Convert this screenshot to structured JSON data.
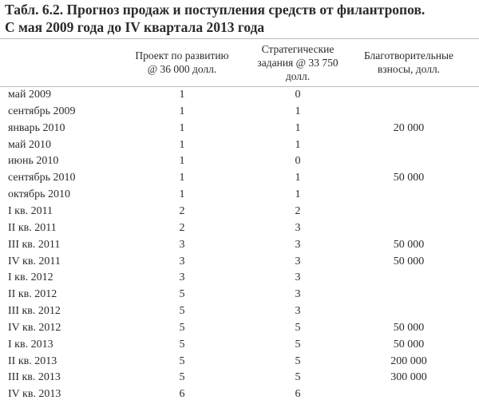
{
  "title": [
    "Табл. 6.2. Прогноз продаж и поступления средств от филантропов.",
    "С мая 2009 года до IV квартала 2013 года"
  ],
  "table": {
    "headers": [
      [
        "Проект по развитию",
        "@ 36 000 долл."
      ],
      [
        "Стратегические",
        "задания @ 33 750",
        "долл."
      ],
      [
        "Благотворительные",
        "взносы, долл."
      ]
    ],
    "rows": [
      [
        "май 2009",
        "1",
        "0",
        null
      ],
      [
        "сентябрь 2009",
        "1",
        "1",
        null
      ],
      [
        "январь 2010",
        "1",
        "1",
        "20 000"
      ],
      [
        "май 2010",
        "1",
        "1",
        null
      ],
      [
        "июнь 2010",
        "1",
        "0",
        null
      ],
      [
        "сентябрь 2010",
        "1",
        "1",
        "50 000"
      ],
      [
        "октябрь 2010",
        "1",
        "1",
        null
      ],
      [
        "I кв. 2011",
        "2",
        "2",
        null
      ],
      [
        "II кв. 2011",
        "2",
        "3",
        null
      ],
      [
        "III кв. 2011",
        "3",
        "3",
        "50 000"
      ],
      [
        "IV кв. 2011",
        "3",
        "3",
        "50 000"
      ],
      [
        "I кв. 2012",
        "3",
        "3",
        null
      ],
      [
        "II кв. 2012",
        "5",
        "3",
        null
      ],
      [
        "III кв. 2012",
        "5",
        "3",
        null
      ],
      [
        "IV кв. 2012",
        "5",
        "5",
        "50 000"
      ],
      [
        "I кв. 2013",
        "5",
        "5",
        "50 000"
      ],
      [
        "II кв. 2013",
        "5",
        "5",
        "200 000"
      ],
      [
        "III кв. 2013",
        "5",
        "5",
        "300 000"
      ],
      [
        "IV кв. 2013",
        "6",
        "6",
        null
      ]
    ]
  }
}
